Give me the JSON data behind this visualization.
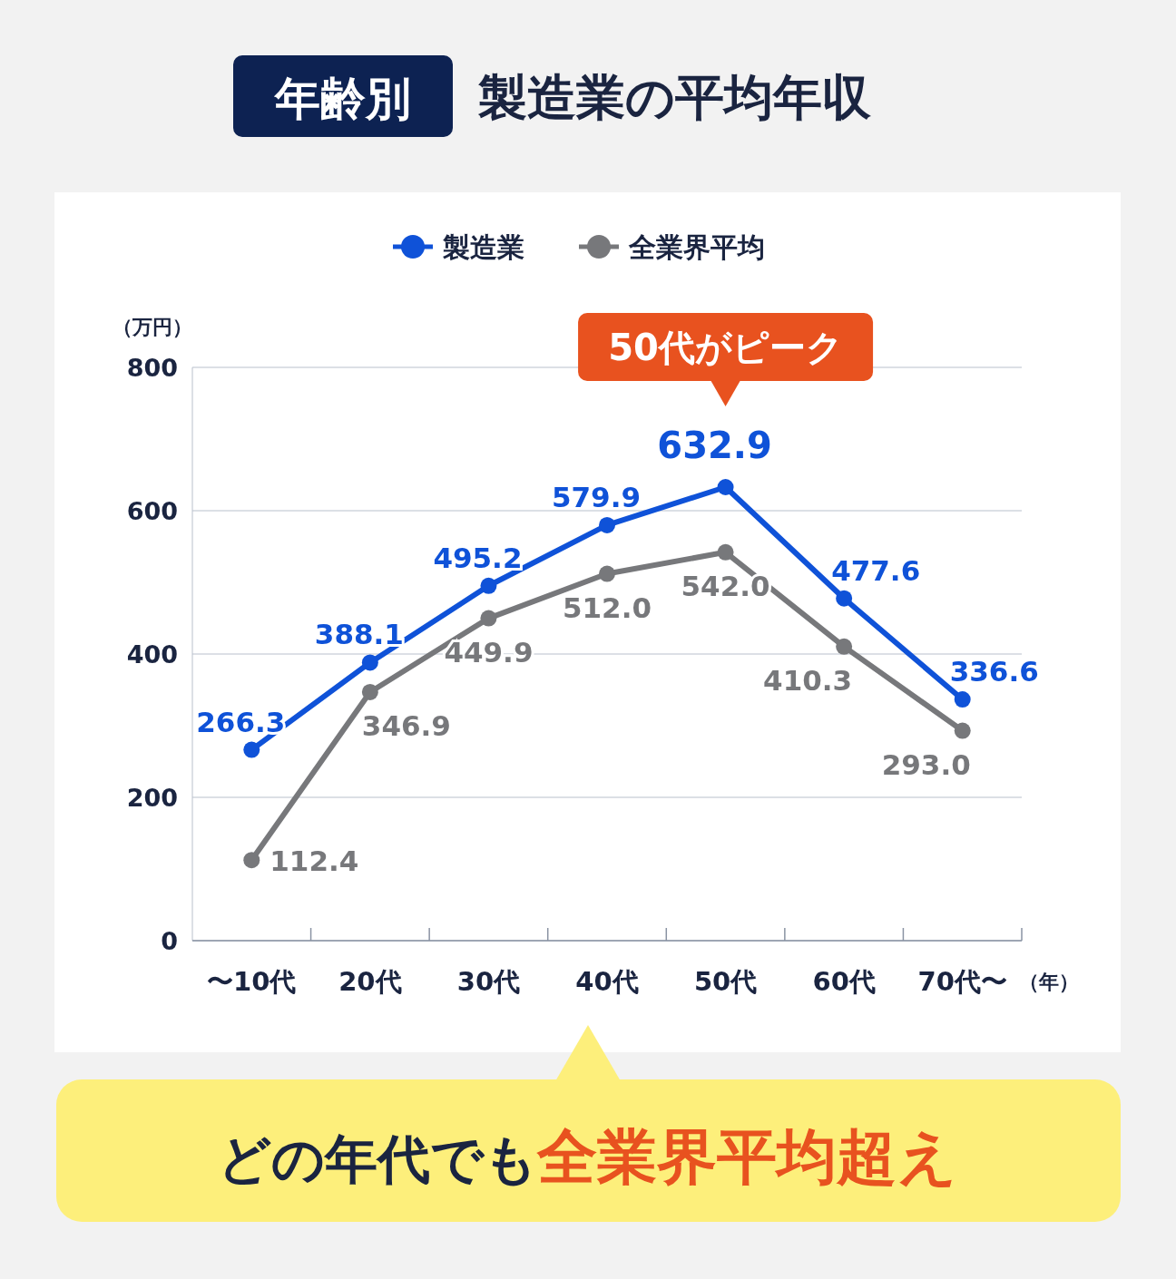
{
  "chart_data": {
    "type": "line",
    "subtitle": "年齢別",
    "title": "製造業の平均年収",
    "categories": [
      "〜10代",
      "20代",
      "30代",
      "40代",
      "50代",
      "60代",
      "70代〜"
    ],
    "series": [
      {
        "name": "製造業",
        "color": "#0f52d8",
        "values": [
          266.3,
          388.1,
          495.2,
          579.9,
          632.9,
          477.6,
          336.6
        ],
        "value_labels": [
          "266.3",
          "388.1",
          "495.2",
          "579.9",
          "632.9",
          "477.6",
          "336.6"
        ]
      },
      {
        "name": "全業界平均",
        "color": "#77787b",
        "values": [
          112.4,
          346.9,
          449.9,
          512.0,
          542.0,
          410.3,
          293.0
        ],
        "value_labels": [
          "112.4",
          "346.9",
          "449.9",
          "512.0",
          "542.0",
          "410.3",
          "293.0"
        ]
      }
    ],
    "ylabel": "（万円）",
    "xlabel": "（年）",
    "ylim": [
      0,
      800
    ],
    "yticks": [
      0,
      200,
      400,
      600,
      800
    ],
    "grid": "y",
    "legend": "top",
    "marker": "circle",
    "line_style": "solid",
    "annotations": [
      "50代がピーク",
      "どの年代でも",
      "全業界平均超え"
    ]
  }
}
